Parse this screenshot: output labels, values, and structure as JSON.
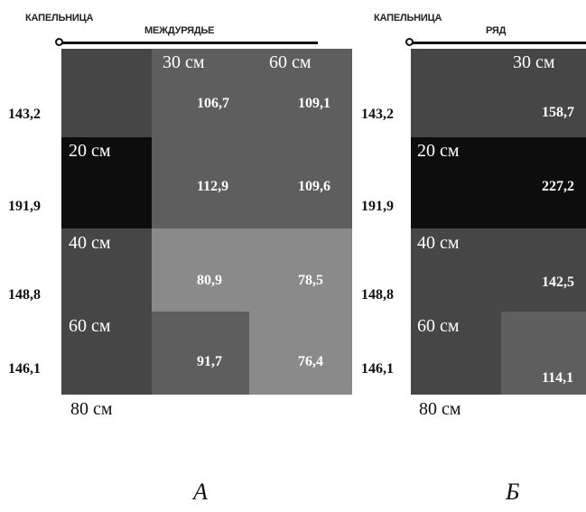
{
  "panel_a": {
    "caption": "А",
    "header_dripper": "КАПЕЛЬНИЦА",
    "header_column": "МЕЖДУРЯДЬЕ",
    "col_labels": [
      "30 см",
      "60 см"
    ],
    "depth_labels": [
      "20 см",
      "40 см",
      "60 см",
      "80 см"
    ],
    "row_values": [
      "143,2",
      "191,9",
      "148,8",
      "146,1"
    ],
    "cells": [
      [
        "106,7",
        "109,1"
      ],
      [
        "112,9",
        "109,6"
      ],
      [
        "80,9",
        "78,5"
      ],
      [
        "91,7",
        "76,4"
      ]
    ]
  },
  "panel_b": {
    "caption": "Б",
    "header_dripper": "КАПЕЛЬНИЦА",
    "header_column": "РЯД",
    "col_labels": [
      "30 см"
    ],
    "depth_labels": [
      "20 см",
      "40 см",
      "60 см",
      "80 см"
    ],
    "row_values": [
      "143,2",
      "191,9",
      "148,8",
      "146,1"
    ],
    "cells": [
      "158,7",
      "227,2",
      "142,5",
      "114,1"
    ]
  },
  "colors": {
    "black": "#0d0d0d",
    "dark": "#464646",
    "medium": "#5e5e5e",
    "light": "#8a8a8a"
  }
}
